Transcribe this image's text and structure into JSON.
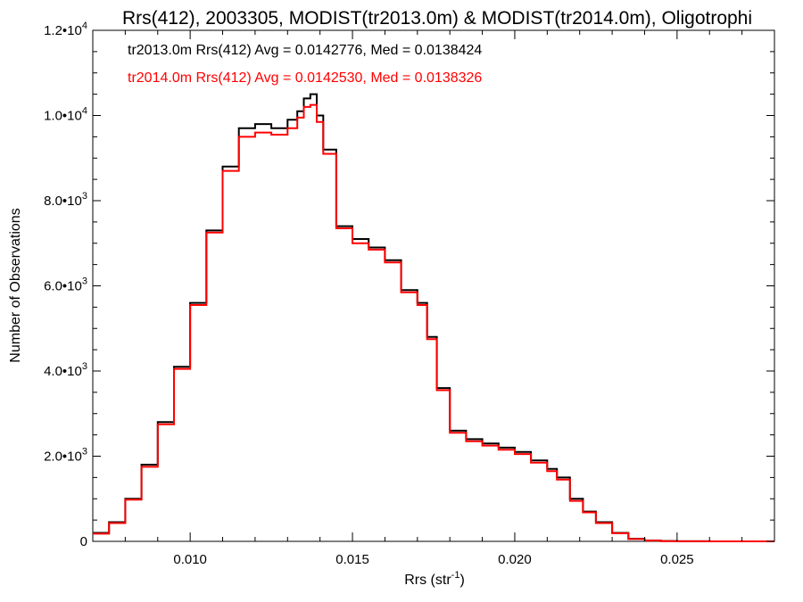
{
  "chart_data": {
    "type": "line",
    "title": "Rrs(412), 2003305, MODIST(tr2013.0m) & MODIST(tr2014.0m), Oligotrophi",
    "xlabel": "Rrs (str",
    "xlabel_sup": "-1",
    "xlabel_end": ")",
    "ylabel": "Number of Observations",
    "xlim": [
      0.007,
      0.028
    ],
    "ylim": [
      0,
      12000
    ],
    "x_ticks": [
      {
        "value": 0.01,
        "label": "0.010"
      },
      {
        "value": 0.015,
        "label": "0.015"
      },
      {
        "value": 0.02,
        "label": "0.020"
      },
      {
        "value": 0.025,
        "label": "0.025"
      }
    ],
    "y_ticks": [
      {
        "value": 0,
        "mant": "0",
        "exp": ""
      },
      {
        "value": 2000,
        "mant": "2.0•10",
        "exp": "3"
      },
      {
        "value": 4000,
        "mant": "4.0•10",
        "exp": "3"
      },
      {
        "value": 6000,
        "mant": "6.0•10",
        "exp": "3"
      },
      {
        "value": 8000,
        "mant": "8.0•10",
        "exp": "3"
      },
      {
        "value": 10000,
        "mant": "1.0•10",
        "exp": "4"
      },
      {
        "value": 12000,
        "mant": "1.2•10",
        "exp": "4"
      }
    ],
    "legend_placement": "top-left",
    "grid": false,
    "series": [
      {
        "name": "tr2013.0m Rrs(412) Avg = 0.0142776, Med = 0.0138424",
        "color": "#000000",
        "x": [
          0.007,
          0.0075,
          0.008,
          0.0085,
          0.009,
          0.0095,
          0.01,
          0.0105,
          0.011,
          0.0115,
          0.012,
          0.0125,
          0.013,
          0.0133,
          0.0135,
          0.0137,
          0.0139,
          0.0141,
          0.0145,
          0.015,
          0.0155,
          0.016,
          0.0165,
          0.017,
          0.0173,
          0.0176,
          0.018,
          0.0185,
          0.019,
          0.0195,
          0.02,
          0.0205,
          0.021,
          0.0213,
          0.0217,
          0.0221,
          0.0225,
          0.023,
          0.0235,
          0.024,
          0.0245,
          0.025,
          0.026,
          0.027,
          0.028
        ],
        "y": [
          200,
          450,
          1000,
          1800,
          2800,
          4100,
          5600,
          7300,
          8800,
          9700,
          9800,
          9700,
          9900,
          10100,
          10400,
          10500,
          10000,
          9200,
          7400,
          7100,
          6900,
          6600,
          5900,
          5600,
          4800,
          3600,
          2600,
          2400,
          2300,
          2200,
          2100,
          1900,
          1700,
          1500,
          1000,
          700,
          450,
          200,
          60,
          20,
          8,
          3,
          1,
          0,
          0
        ]
      },
      {
        "name": "tr2014.0m Rrs(412) Avg = 0.0142530, Med = 0.0138326",
        "color": "#ff0000",
        "x": [
          0.007,
          0.0075,
          0.008,
          0.0085,
          0.009,
          0.0095,
          0.01,
          0.0105,
          0.011,
          0.0115,
          0.012,
          0.0125,
          0.013,
          0.0133,
          0.0135,
          0.0137,
          0.0139,
          0.0141,
          0.0145,
          0.015,
          0.0155,
          0.016,
          0.0165,
          0.017,
          0.0173,
          0.0176,
          0.018,
          0.0185,
          0.019,
          0.0195,
          0.02,
          0.0205,
          0.021,
          0.0213,
          0.0217,
          0.0221,
          0.0225,
          0.023,
          0.0235,
          0.024,
          0.0245,
          0.025,
          0.026,
          0.027,
          0.028
        ],
        "y": [
          180,
          430,
          980,
          1750,
          2750,
          4050,
          5550,
          7250,
          8700,
          9500,
          9600,
          9550,
          9700,
          9950,
          10200,
          10250,
          9850,
          9100,
          7350,
          7000,
          6850,
          6550,
          5850,
          5550,
          4750,
          3550,
          2550,
          2350,
          2250,
          2150,
          2050,
          1850,
          1650,
          1450,
          950,
          680,
          430,
          190,
          55,
          18,
          7,
          3,
          1,
          0,
          0
        ]
      }
    ]
  }
}
